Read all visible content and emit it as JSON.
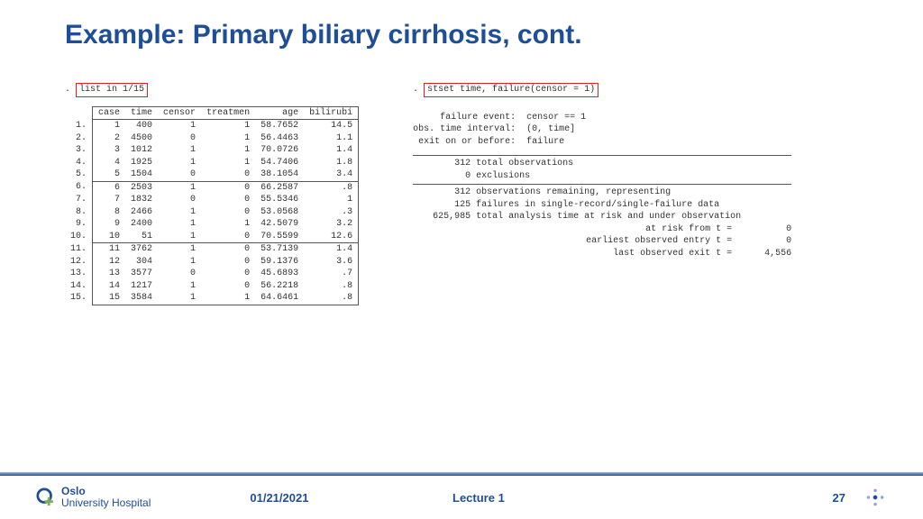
{
  "title": "Example: Primary biliary cirrhosis, cont.",
  "left": {
    "cmd": "list in 1/15",
    "headers": [
      "case",
      "time",
      "censor",
      "treatmen",
      "age",
      "bilirubi"
    ],
    "rows": [
      [
        "1",
        "400",
        "1",
        "1",
        "58.7652",
        "14.5"
      ],
      [
        "2",
        "4500",
        "0",
        "1",
        "56.4463",
        "1.1"
      ],
      [
        "3",
        "1012",
        "1",
        "1",
        "70.0726",
        "1.4"
      ],
      [
        "4",
        "1925",
        "1",
        "1",
        "54.7406",
        "1.8"
      ],
      [
        "5",
        "1504",
        "0",
        "0",
        "38.1054",
        "3.4"
      ],
      [
        "6",
        "2503",
        "1",
        "0",
        "66.2587",
        ".8"
      ],
      [
        "7",
        "1832",
        "0",
        "0",
        "55.5346",
        "1"
      ],
      [
        "8",
        "2466",
        "1",
        "0",
        "53.0568",
        ".3"
      ],
      [
        "9",
        "2400",
        "1",
        "1",
        "42.5079",
        "3.2"
      ],
      [
        "10",
        "51",
        "1",
        "0",
        "70.5599",
        "12.6"
      ],
      [
        "11",
        "3762",
        "1",
        "0",
        "53.7139",
        "1.4"
      ],
      [
        "12",
        "304",
        "1",
        "0",
        "59.1376",
        "3.6"
      ],
      [
        "13",
        "3577",
        "0",
        "0",
        "45.6893",
        ".7"
      ],
      [
        "14",
        "1217",
        "1",
        "0",
        "56.2218",
        ".8"
      ],
      [
        "15",
        "3584",
        "1",
        "1",
        "64.6461",
        ".8"
      ]
    ],
    "breaks_after": [
      5,
      10
    ]
  },
  "right": {
    "cmd": "stset time, failure(censor = 1)",
    "pre": [
      "     failure event:  censor == 1",
      "obs. time interval:  (0, time]",
      " exit on or before:  failure"
    ],
    "block1": [
      {
        "n": "312",
        "t": "total observations"
      },
      {
        "n": "0",
        "t": "exclusions"
      }
    ],
    "block2": [
      {
        "n": "312",
        "t": "observations remaining, representing"
      },
      {
        "n": "125",
        "t": "failures in single-record/single-failure data"
      },
      {
        "n": "625,985",
        "t": "total analysis time at risk and under observation"
      }
    ],
    "tail": [
      {
        "l": "at risk from t =",
        "v": "0"
      },
      {
        "l": "earliest observed entry t =",
        "v": "0"
      },
      {
        "l": "last observed exit t =",
        "v": "4,556"
      }
    ]
  },
  "footer": {
    "org1": "Oslo",
    "org2": "University Hospital",
    "date": "01/21/2021",
    "lecture": "Lecture 1",
    "page": "27"
  },
  "colors": {
    "brand": "#1f4e99",
    "cmdbox": "#d22"
  }
}
